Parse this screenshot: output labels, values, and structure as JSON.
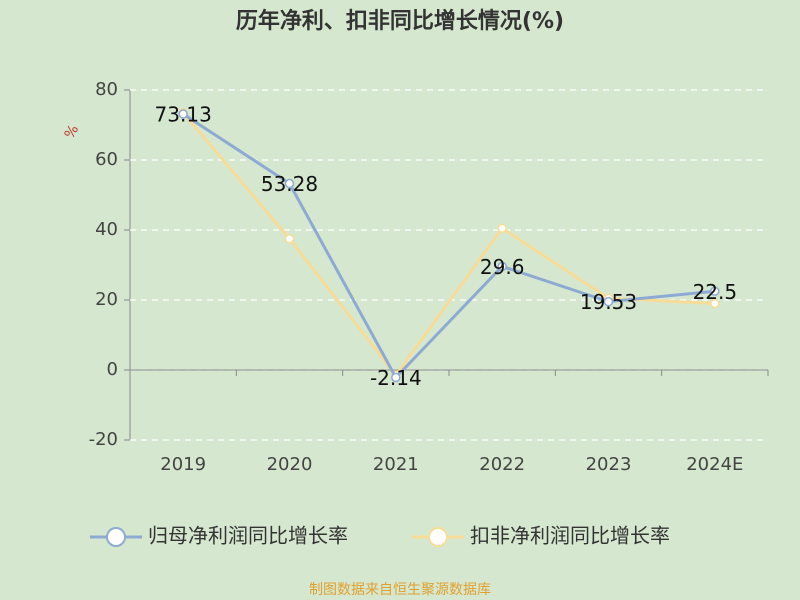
{
  "chart_data": {
    "type": "line",
    "title": "历年净利、扣非同比增长情况(%)",
    "y_label": "%",
    "categories": [
      "2019",
      "2020",
      "2021",
      "2022",
      "2023",
      "2024E"
    ],
    "series": [
      {
        "name": "归母净利润同比增长率",
        "color": "#8eaad2",
        "values": [
          73.13,
          53.28,
          -2.14,
          29.6,
          19.53,
          22.5
        ]
      },
      {
        "name": "扣非净利润同比增长率",
        "color": "#f7dc98",
        "values": [
          73.5,
          37.5,
          -1.5,
          40.5,
          20.5,
          19
        ]
      }
    ],
    "ylim": [
      -20,
      80
    ],
    "yticks": [
      -20,
      0,
      20,
      40,
      60,
      80
    ],
    "grid": true,
    "source": "制图数据来自恒生聚源数据库"
  }
}
